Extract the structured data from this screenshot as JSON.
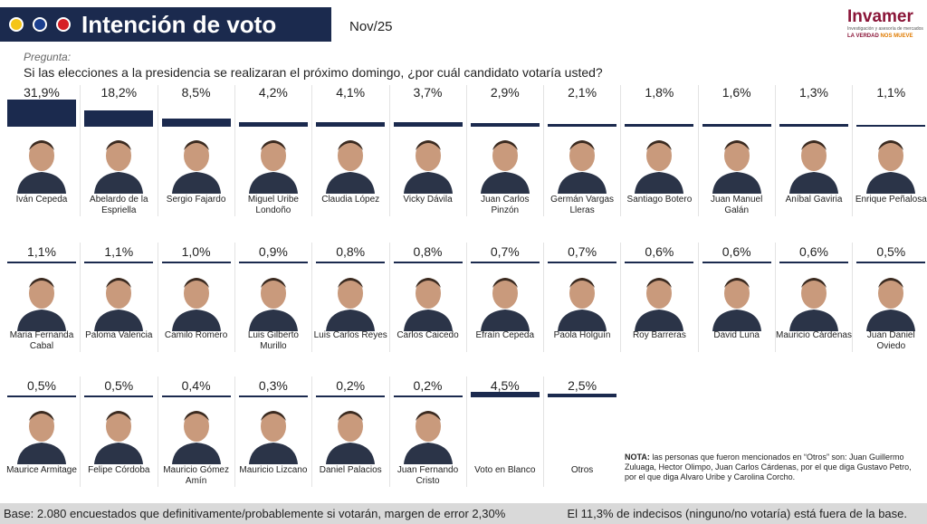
{
  "header": {
    "title": "Intención de voto",
    "date": "Nov/25"
  },
  "logo": {
    "name": "Invamer",
    "tagline": "Investigación y asesoría de mercados",
    "slogan_a": "LA VERDAD",
    "slogan_b": "NOS MUEVE"
  },
  "question": {
    "label": "Pregunta:",
    "text": "Si las elecciones a la presidencia se realizaran el próximo domingo, ¿por cuál candidato votaría usted?"
  },
  "chart_data": {
    "type": "bar",
    "color": "#1b2a4e",
    "categories": [
      "Iván Cepeda",
      "Abelardo de la Espriella",
      "Sergio Fajardo",
      "Miguel Uribe Londoño",
      "Claudia López",
      "Vicky Dávila",
      "Juan Carlos Pinzón",
      "Germán Vargas Lleras",
      "Santiago Botero",
      "Juan Manuel Galán",
      "Aníbal Gaviria",
      "Enrique Peñalosa",
      "Maria Fernanda Cabal",
      "Paloma Valencia",
      "Camilo Romero",
      "Luis Gilberto Murillo",
      "Luis Carlos Reyes",
      "Carlos Caicedo",
      "Efraín Cepeda",
      "Paola Holguín",
      "Roy Barreras",
      "David Luna",
      "Mauricio Cárdenas",
      "Juan Daniel Oviedo",
      "Maurice Armitage",
      "Felipe Córdoba",
      "Mauricio Gómez Amín",
      "Mauricio Lizcano",
      "Daniel Palacios",
      "Juan Fernando Cristo",
      "Voto en Blanco",
      "Otros"
    ],
    "values": [
      31.9,
      18.2,
      8.5,
      4.2,
      4.1,
      3.7,
      2.9,
      2.1,
      1.8,
      1.6,
      1.3,
      1.1,
      1.1,
      1.1,
      1.0,
      0.9,
      0.8,
      0.8,
      0.7,
      0.7,
      0.6,
      0.6,
      0.6,
      0.5,
      0.5,
      0.5,
      0.4,
      0.3,
      0.2,
      0.2,
      4.5,
      2.5
    ],
    "value_labels": [
      "31,9%",
      "18,2%",
      "8,5%",
      "4,2%",
      "4,1%",
      "3,7%",
      "2,9%",
      "2,1%",
      "1,8%",
      "1,6%",
      "1,3%",
      "1,1%",
      "1,1%",
      "1,1%",
      "1,0%",
      "0,9%",
      "0,8%",
      "0,8%",
      "0,7%",
      "0,7%",
      "0,6%",
      "0,6%",
      "0,6%",
      "0,5%",
      "0,5%",
      "0,5%",
      "0,4%",
      "0,3%",
      "0,2%",
      "0,2%",
      "4,5%",
      "2,5%"
    ]
  },
  "note": {
    "label": "NOTA:",
    "text": "las personas que fueron mencionados en “Otros” son: Juan Guillermo Zuluaga, Hector Olimpo, Juan Carlos Cárdenas, por el que diga Gustavo Petro, por el que diga Alvaro Uribe y Carolina Corcho."
  },
  "footer": {
    "base": "Base: 2.080 encuestados que definitivamente/probablemente si votarán, margen de error 2,30%",
    "undecided": "El 11,3% de indecisos (ninguno/no votaría) está fuera de la base."
  }
}
